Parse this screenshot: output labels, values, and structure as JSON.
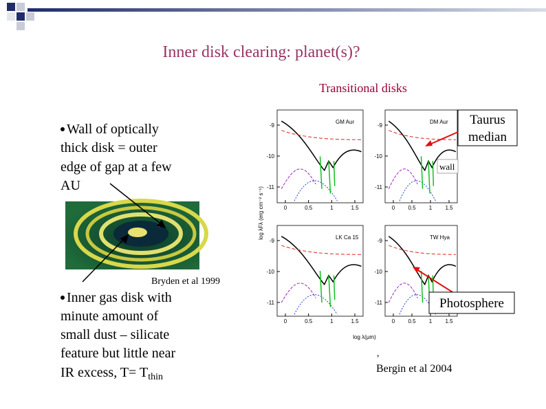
{
  "header": {
    "title": "Inner disk clearing: planet(s)?",
    "subtitle": "Transitional disks"
  },
  "bullets": [
    {
      "lines": [
        "Wall of optically",
        "thick disk = outer",
        "edge of gap at a few",
        "AU"
      ]
    },
    {
      "lines": [
        "Inner gas disk with",
        "minute amount of",
        "small dust – silicate",
        "feature but little near",
        "IR excess, T= T"
      ],
      "subscript": "thin"
    }
  ],
  "image_caption": "Bryden et al 1999",
  "figure": {
    "y_axis_label": "log λFλ (erg cm⁻² s⁻¹)",
    "x_axis_label": "log λ(μm)",
    "panels": [
      {
        "label": "GM Aur",
        "yticks": [
          "-9",
          "-10",
          "-11"
        ],
        "xticks": [
          "0",
          "0.5",
          "1",
          "1.5"
        ]
      },
      {
        "label": "DM Aur",
        "yticks": [
          "-9",
          "-10",
          "-11"
        ],
        "xticks": [
          "0",
          "0.5",
          "1",
          "1.5"
        ]
      },
      {
        "label": "LK Ca 15",
        "yticks": [
          "-9",
          "-10",
          "-11"
        ],
        "xticks": [
          "0",
          "0.5",
          "1",
          "1.5"
        ]
      },
      {
        "label": "TW Hya",
        "yticks": [
          "-9",
          "-10",
          "-11"
        ],
        "xticks": [
          "0",
          "0.5",
          "1",
          "1.5"
        ]
      }
    ]
  },
  "callouts": {
    "taurus": [
      "Taurus",
      "median"
    ],
    "wall": "wall",
    "photosphere": "Photosphere"
  },
  "footnote": {
    "comma": ",",
    "citation": "Bergin et al 2004"
  }
}
